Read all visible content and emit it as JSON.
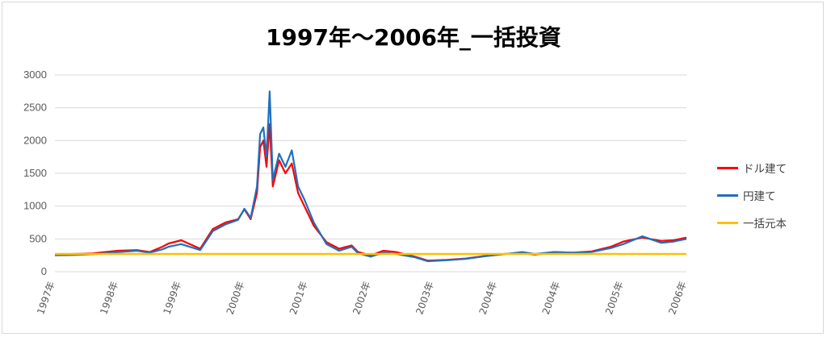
{
  "chart_data": {
    "type": "line",
    "title": "1997年～2006年_一括投資",
    "xlabel": "",
    "ylabel": "",
    "ylim": [
      0,
      3000
    ],
    "yticks": [
      0,
      500,
      1000,
      1500,
      2000,
      2500,
      3000
    ],
    "grid": true,
    "legend_position": "right",
    "x_tick_labels": [
      "1997年",
      "1998年",
      "1999年",
      "2000年",
      "2001年",
      "2002年",
      "2003年",
      "2004年",
      "2004年",
      "2005年",
      "2006年"
    ],
    "x": [
      1997.0,
      1997.3,
      1997.6,
      1998.0,
      1998.3,
      1998.5,
      1998.7,
      1998.8,
      1999.0,
      1999.3,
      1999.5,
      1999.7,
      1999.9,
      2000.0,
      2000.1,
      2000.2,
      2000.25,
      2000.3,
      2000.35,
      2000.4,
      2000.45,
      2000.55,
      2000.65,
      2000.75,
      2000.85,
      2000.95,
      2001.1,
      2001.3,
      2001.5,
      2001.7,
      2001.8,
      2002.0,
      2002.2,
      2002.4,
      2002.7,
      2002.9,
      2003.2,
      2003.5,
      2003.8,
      2004.1,
      2004.4,
      2004.6,
      2004.9,
      2005.2,
      2005.5,
      2005.8,
      2006.0,
      2006.3,
      2006.6,
      2006.8,
      2007.0
    ],
    "series": [
      {
        "name": "ドル建て",
        "color": "#ff0000",
        "values": [
          260,
          270,
          280,
          320,
          330,
          300,
          380,
          430,
          480,
          350,
          650,
          750,
          800,
          950,
          800,
          1200,
          1900,
          2000,
          1600,
          2250,
          1300,
          1700,
          1500,
          1650,
          1200,
          1000,
          700,
          450,
          350,
          400,
          300,
          250,
          320,
          300,
          230,
          170,
          180,
          200,
          240,
          270,
          280,
          260,
          300,
          290,
          310,
          380,
          460,
          520,
          470,
          480,
          520
        ]
      },
      {
        "name": "円建て",
        "color": "#1f6fbf",
        "values": [
          250,
          255,
          265,
          300,
          320,
          290,
          340,
          380,
          420,
          330,
          620,
          720,
          790,
          960,
          820,
          1300,
          2100,
          2200,
          1750,
          2750,
          1400,
          1800,
          1600,
          1850,
          1300,
          1100,
          750,
          420,
          320,
          380,
          280,
          230,
          290,
          270,
          220,
          160,
          175,
          195,
          235,
          265,
          300,
          270,
          300,
          290,
          300,
          360,
          420,
          540,
          440,
          460,
          500
        ]
      },
      {
        "name": "一括元本",
        "color": "#ffc000",
        "values": [
          270,
          270,
          270,
          270,
          270,
          270,
          270,
          270,
          270,
          270,
          270,
          270,
          270,
          270,
          270,
          270,
          270,
          270,
          270,
          270,
          270,
          270,
          270,
          270,
          270,
          270,
          270,
          270,
          270,
          270,
          270,
          270,
          270,
          270,
          270,
          270,
          270,
          270,
          270,
          270,
          270,
          270,
          270,
          270,
          270,
          270,
          270,
          270,
          270,
          270,
          270
        ]
      }
    ]
  }
}
